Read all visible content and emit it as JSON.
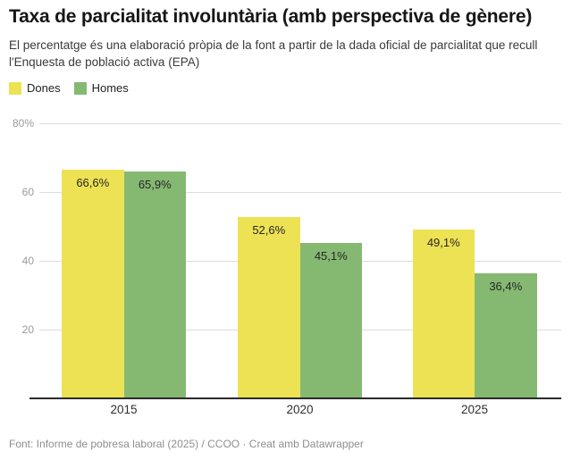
{
  "header": {
    "title": "Taxa de parcialitat involuntària (amb perspectiva de gènere)",
    "subtitle": "El percentatge és una elaboració pròpia de la font a partir de la dada oficial de parcialitat que recull l'Enquesta de població activa (EPA)"
  },
  "legend": {
    "items": [
      {
        "label": "Dones",
        "color": "#EDE253"
      },
      {
        "label": "Homes",
        "color": "#85B972"
      }
    ]
  },
  "chart_data": {
    "type": "bar",
    "title": "Taxa de parcialitat involuntària (amb perspectiva de gènere)",
    "xlabel": "",
    "ylabel": "",
    "categories": [
      "2015",
      "2020",
      "2025"
    ],
    "series": [
      {
        "name": "Dones",
        "color": "#EDE253",
        "values": [
          66.6,
          52.6,
          49.1
        ],
        "labels": [
          "66,6%",
          "52,6%",
          "49,1%"
        ]
      },
      {
        "name": "Homes",
        "color": "#85B972",
        "values": [
          65.9,
          45.1,
          36.4
        ],
        "labels": [
          "65,9%",
          "45,1%",
          "36,4%"
        ]
      }
    ],
    "ylim": [
      0,
      80
    ],
    "yticks": [
      {
        "value": 80,
        "label": "80%"
      },
      {
        "value": 60,
        "label": "60"
      },
      {
        "value": 40,
        "label": "40"
      },
      {
        "value": 20,
        "label": "20"
      }
    ],
    "grid": true,
    "legend_position": "top-left",
    "colors": {
      "grid": "#dcdcdc",
      "axis": "#2b2b2b",
      "tick_text": "#9a9a9a"
    }
  },
  "footer": {
    "text": "Font: Informe de pobresa laboral (2025) / CCOO · Creat amb Datawrapper"
  }
}
